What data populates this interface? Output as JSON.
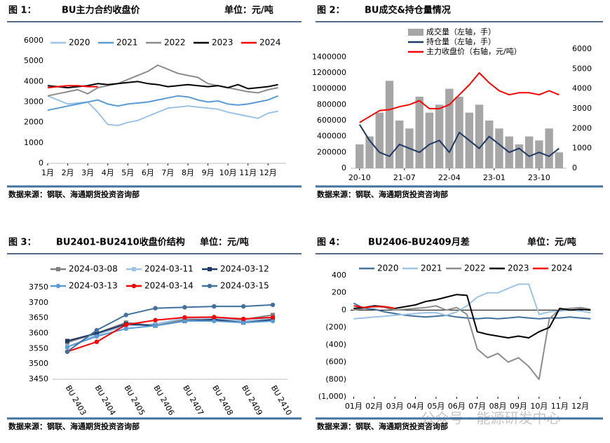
{
  "chart_data": [
    {
      "type": "line",
      "figure": "图 1：",
      "title": "BU主力合约收盘价",
      "unit": "单位：元/吨",
      "source": "数据来源：钢联、海通期货投资咨询部",
      "x": [
        1,
        1.5,
        2,
        2.5,
        3,
        3.5,
        4,
        4.5,
        5,
        5.5,
        6,
        6.5,
        7,
        7.5,
        8,
        8.5,
        9,
        9.5,
        10,
        10.5,
        11,
        11.5,
        12,
        12.5
      ],
      "xlim": [
        1,
        12.9
      ],
      "xticks": [
        {
          "value": 1,
          "label": "1月"
        },
        {
          "value": 2,
          "label": "2月"
        },
        {
          "value": 3,
          "label": "3月"
        },
        {
          "value": 4,
          "label": "4月"
        },
        {
          "value": 5,
          "label": "5月"
        },
        {
          "value": 6,
          "label": "6月"
        },
        {
          "value": 7,
          "label": "7月"
        },
        {
          "value": 8,
          "label": "8月"
        },
        {
          "value": 9,
          "label": "9月"
        },
        {
          "value": 10,
          "label": "10月"
        },
        {
          "value": 11,
          "label": "11月"
        },
        {
          "value": 12,
          "label": "12月"
        }
      ],
      "ylim": [
        0,
        6000
      ],
      "yticks": [
        0,
        1000,
        2000,
        3000,
        4000,
        5000,
        6000
      ],
      "series": [
        {
          "name": "2020",
          "color": "#9dc3e6",
          "values": [
            3300,
            3100,
            2900,
            2950,
            3000,
            2500,
            1900,
            1850,
            2000,
            2100,
            2300,
            2500,
            2700,
            2750,
            2800,
            2750,
            2700,
            2650,
            2500,
            2400,
            2300,
            2200,
            2450,
            2550
          ]
        },
        {
          "name": "2021",
          "color": "#5b9bd5",
          "values": [
            2600,
            2700,
            2800,
            2900,
            3000,
            3100,
            2900,
            2800,
            2900,
            2950,
            3000,
            3100,
            3200,
            3300,
            3250,
            3100,
            3000,
            3050,
            2900,
            2850,
            2900,
            3000,
            3100,
            3300
          ]
        },
        {
          "name": "2022",
          "color": "#8c8c8c",
          "values": [
            3300,
            3400,
            3500,
            3600,
            3400,
            3700,
            3800,
            3900,
            4100,
            4300,
            4500,
            4800,
            4600,
            4400,
            4300,
            4200,
            3900,
            3800,
            3700,
            3600,
            3500,
            3450,
            3600,
            3700
          ]
        },
        {
          "name": "2023",
          "color": "#000000",
          "values": [
            3800,
            3750,
            3700,
            3750,
            3800,
            3900,
            3850,
            3900,
            3950,
            4000,
            3900,
            3850,
            3750,
            3800,
            3850,
            3800,
            3750,
            3800,
            3700,
            3850,
            3650,
            3700,
            3750,
            3850
          ]
        },
        {
          "name": "2024",
          "color": "#ff0000",
          "values": [
            3700,
            3750,
            3800,
            3800,
            3750,
            3750,
            null,
            null,
            null,
            null,
            null,
            null,
            null,
            null,
            null,
            null,
            null,
            null,
            null,
            null,
            null,
            null,
            null,
            null
          ]
        }
      ]
    },
    {
      "type": "combo",
      "figure": "图 2：",
      "title": "BU成交&持仓量情况",
      "source": "数据来源：钢联、海通期货投资咨询部",
      "x": [
        0,
        2,
        4,
        6,
        8,
        10,
        12,
        14,
        16,
        18,
        20,
        22,
        24,
        26,
        28,
        30,
        32,
        34,
        36,
        38,
        40
      ],
      "xlim": [
        -1.8,
        41.5
      ],
      "xticks": [
        {
          "value": 0,
          "label": "20-10"
        },
        {
          "value": 9,
          "label": "21-07"
        },
        {
          "value": 18,
          "label": "22-04"
        },
        {
          "value": 27,
          "label": "23-01"
        },
        {
          "value": 36,
          "label": "23-10"
        }
      ],
      "ylim": [
        0,
        1500000
      ],
      "yticks": [
        0,
        200000,
        400000,
        600000,
        800000,
        1000000,
        1200000,
        1400000
      ],
      "y2lim": [
        0,
        6000
      ],
      "y2ticks": [
        0,
        1000,
        2000,
        3000,
        4000,
        5000,
        6000
      ],
      "series": [
        {
          "name": "成交量（左轴，手）",
          "type": "bar",
          "color": "#a6a6a6",
          "values": [
            300000,
            400000,
            700000,
            1100000,
            600000,
            500000,
            900000,
            700000,
            800000,
            1000000,
            900000,
            700000,
            800000,
            600000,
            500000,
            400000,
            300000,
            400000,
            350000,
            500000,
            200000
          ]
        },
        {
          "name": "持仓量（左轴，手）",
          "type": "line",
          "color": "#1f3864",
          "values": [
            550000,
            350000,
            200000,
            150000,
            300000,
            250000,
            200000,
            300000,
            350000,
            200000,
            450000,
            350000,
            250000,
            400000,
            300000,
            200000,
            250000,
            150000,
            200000,
            150000,
            250000
          ]
        },
        {
          "name": "主力收盘价（右轴，元/吨）",
          "type": "line",
          "axis": "y2",
          "color": "#ff0000",
          "values": [
            2300,
            2600,
            2900,
            2950,
            3100,
            3200,
            3400,
            3000,
            3000,
            3200,
            3700,
            4200,
            4800,
            4300,
            3900,
            3700,
            3800,
            3800,
            3700,
            3900,
            3700
          ]
        }
      ]
    },
    {
      "type": "line",
      "figure": "图 3：",
      "title": "BU2401-BU2410收盘价结构",
      "unit": "单位：元/吨",
      "source": "数据来源：钢联、海通期货投资咨询部",
      "categories": [
        "BU 2403",
        "BU 2404",
        "BU 2405",
        "BU 2406",
        "BU 2407",
        "BU 2408",
        "BU 2409",
        "BU 2410"
      ],
      "ylim": [
        3450,
        3750
      ],
      "yticks": [
        3450,
        3500,
        3550,
        3600,
        3650,
        3700,
        3750
      ],
      "series": [
        {
          "name": "2024-03-08",
          "color": "#7f7f7f",
          "marker": "square",
          "values": [
            3570,
            3600,
            3635,
            3625,
            3645,
            3650,
            3645,
            3660
          ]
        },
        {
          "name": "2024-03-11",
          "color": "#9dc3e6",
          "marker": "square",
          "values": [
            3555,
            3595,
            3625,
            3630,
            3650,
            3648,
            3640,
            3650
          ]
        },
        {
          "name": "2024-03-12",
          "color": "#1f3864",
          "marker": "square",
          "values": [
            3575,
            3600,
            3630,
            3625,
            3640,
            3645,
            3635,
            3645
          ]
        },
        {
          "name": "2024-03-13",
          "color": "#5b9bd5",
          "marker": "circle",
          "values": [
            3555,
            3590,
            3615,
            3625,
            3640,
            3640,
            3635,
            3640
          ]
        },
        {
          "name": "2024-03-14",
          "color": "#ff0000",
          "marker": "circle",
          "values": [
            3540,
            3572,
            3628,
            3643,
            3652,
            3653,
            3647,
            3652
          ]
        },
        {
          "name": "2024-03-15",
          "color": "#41719c",
          "marker": "circle",
          "values": [
            3540,
            3610,
            3660,
            3682,
            3685,
            3688,
            3688,
            3693
          ]
        }
      ]
    },
    {
      "type": "line",
      "figure": "图 4：",
      "title": "BU2406-BU2409月差",
      "unit": "单位：元/吨",
      "source": "数据来源：钢联、海通期货投资咨询部",
      "x": [
        1,
        1.5,
        2,
        2.5,
        3,
        3.5,
        4,
        4.5,
        5,
        5.5,
        6,
        6.5,
        7,
        7.5,
        8,
        8.5,
        9,
        9.5,
        10,
        10.5,
        11,
        11.5,
        12,
        12.5
      ],
      "xlim": [
        0.85,
        12.15
      ],
      "xticks": [
        {
          "value": 1,
          "label": "01月"
        },
        {
          "value": 2,
          "label": "02月"
        },
        {
          "value": 3,
          "label": "03月"
        },
        {
          "value": 4,
          "label": "04月"
        },
        {
          "value": 5,
          "label": "05月"
        },
        {
          "value": 6,
          "label": "06月"
        },
        {
          "value": 7,
          "label": "07月"
        },
        {
          "value": 8,
          "label": "08月"
        },
        {
          "value": 9,
          "label": "09月"
        },
        {
          "value": 10,
          "label": "10月"
        },
        {
          "value": 11,
          "label": "11月"
        },
        {
          "value": 12,
          "label": "12月"
        }
      ],
      "ylim": [
        -1000,
        400
      ],
      "yticks": [
        {
          "value": -1000,
          "label": "(1,000)"
        },
        {
          "value": -800,
          "label": "(800)"
        },
        {
          "value": -600,
          "label": "(600)"
        },
        {
          "value": -400,
          "label": "(400)"
        },
        {
          "value": -200,
          "label": "(200)"
        },
        0,
        200,
        400
      ],
      "negative_tick_color": "#ff0000",
      "series": [
        {
          "name": "2020",
          "color": "#41719c",
          "values": [
            80,
            20,
            10,
            -20,
            -40,
            -60,
            -70,
            -80,
            -70,
            -60,
            -80,
            -90,
            -100,
            -90,
            -100,
            -90,
            -80,
            -90,
            -100,
            -90,
            -90,
            -80,
            -90,
            -100
          ]
        },
        {
          "name": "2021",
          "color": "#9dc3e6",
          "values": [
            -100,
            -90,
            -80,
            -70,
            -60,
            -50,
            -40,
            -30,
            -30,
            -60,
            -20,
            50,
            150,
            200,
            200,
            250,
            300,
            300,
            -50,
            -20,
            -10,
            0,
            -10,
            -30
          ]
        },
        {
          "name": "2022",
          "color": "#8c8c8c",
          "values": [
            0,
            20,
            50,
            30,
            0,
            10,
            20,
            30,
            50,
            0,
            30,
            -50,
            -450,
            -550,
            -500,
            -600,
            -550,
            -650,
            -800,
            -100,
            10,
            20,
            30,
            10
          ]
        },
        {
          "name": "2023",
          "color": "#000000",
          "values": [
            20,
            30,
            50,
            40,
            20,
            40,
            60,
            100,
            120,
            150,
            180,
            170,
            -250,
            -280,
            -300,
            -320,
            -300,
            -320,
            -250,
            -200,
            20,
            0,
            10,
            0
          ]
        },
        {
          "name": "2024",
          "color": "#ff0000",
          "values": [
            50,
            30,
            40,
            40,
            20,
            null,
            null,
            null,
            null,
            null,
            null,
            null,
            null,
            null,
            null,
            null,
            null,
            null,
            null,
            null,
            null,
            null,
            null,
            null
          ]
        }
      ]
    }
  ],
  "watermark": "公众号 · 能源研发中心"
}
